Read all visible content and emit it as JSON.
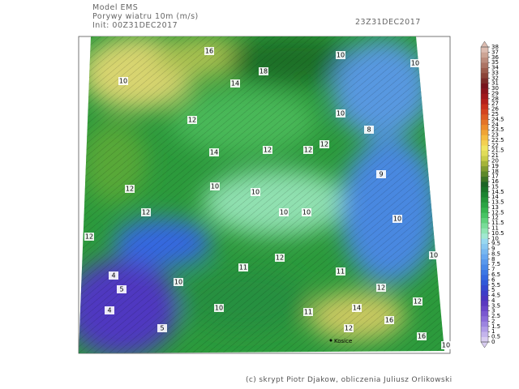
{
  "header": {
    "model": "Model EMS",
    "title": "Porywy wiatru 10m (m/s)",
    "init": "Init: 00Z31DEC2017",
    "valid": "23Z31DEC2017"
  },
  "colorbar": {
    "levels": [
      0,
      0.5,
      1,
      1.5,
      2,
      2.5,
      3,
      3.5,
      4,
      4.5,
      5,
      5.5,
      6,
      6.5,
      7,
      7.5,
      8,
      8.5,
      9,
      9.5,
      10,
      10.5,
      11,
      11.5,
      12,
      12.5,
      13,
      13.5,
      14,
      14.5,
      15,
      16,
      17,
      18,
      19,
      20,
      21,
      21.5,
      22,
      22.5,
      23,
      23.5,
      24,
      24.5,
      25,
      26,
      27,
      28,
      29,
      30,
      31,
      32,
      33,
      34,
      35,
      36,
      37,
      38
    ],
    "colors": [
      "#d8ccf0",
      "#c4b4ec",
      "#b09ce6",
      "#9c84e0",
      "#8a6cd8",
      "#7a58d0",
      "#6a46c8",
      "#5a38c0",
      "#4a34c0",
      "#3c3cc8",
      "#3448d0",
      "#3058d8",
      "#3468e0",
      "#3c78e4",
      "#4888e8",
      "#5898ec",
      "#68a8f0",
      "#78b8f0",
      "#88c8f0",
      "#98d8f0",
      "#a0e8d0",
      "#90e4b4",
      "#78dc98",
      "#60d07c",
      "#48c464",
      "#38b450",
      "#2ca444",
      "#249438",
      "#1c8430",
      "#1a7428",
      "#1c6424",
      "#3c7424",
      "#5c8828",
      "#809c30",
      "#a4b438",
      "#c8cc48",
      "#e0dc58",
      "#f0e460",
      "#f4d050",
      "#f4bc40",
      "#f0a434",
      "#ec8c2c",
      "#e47428",
      "#dc5c24",
      "#d44420",
      "#c8301c",
      "#b4201c",
      "#a0181c",
      "#8c141c",
      "#78141c",
      "#7c2c28",
      "#8c4438",
      "#9c5c4c",
      "#ac7464",
      "#bc8c7c",
      "#cca494",
      "#dcbcb0"
    ]
  },
  "map": {
    "contour_labels": [
      16,
      18,
      14,
      10,
      12,
      14,
      12,
      12,
      12,
      10,
      8,
      10,
      10,
      12,
      10,
      10,
      10,
      10,
      9,
      10,
      10,
      12,
      12,
      4,
      5,
      10,
      11,
      12,
      11,
      12,
      12,
      14,
      4,
      5,
      10,
      11,
      12,
      16,
      16,
      10
    ],
    "places": [
      "Kosice"
    ]
  },
  "footer": "(c) skrypt Piotr Djakow, obliczenia Juliusz Orlikowski"
}
